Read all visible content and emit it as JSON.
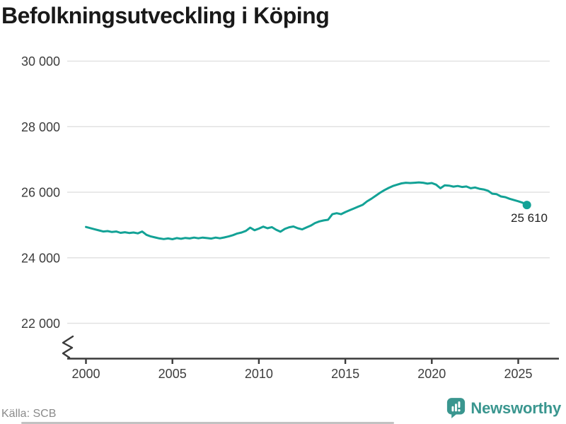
{
  "header": {
    "title": "Befolkningsutveckling i Köping"
  },
  "footer": {
    "source": "Källa: SCB",
    "brand": "Newsworthy"
  },
  "colors": {
    "line": "#13a296",
    "brand": "#3a968f",
    "grid": "#e2e2e2",
    "axis": "#3a3a3a",
    "tick_text": "#3d3d3d",
    "title_text": "#191919",
    "end_label_text": "#222222",
    "source_text": "#8a8a8a"
  },
  "icons": {
    "logo_icon": "newsworthy-speech-bubble-bar-chart",
    "axis_break": "y-axis-break-zigzag"
  },
  "chart_data": {
    "type": "line",
    "title": "Befolkningsutveckling i Köping",
    "series_name": "Befolkning i Köping",
    "xlabel": "",
    "ylabel": "",
    "x_start": 2000.0,
    "x_step": 0.25,
    "x_end": 2025.5,
    "values": [
      24940,
      24905,
      24870,
      24835,
      24800,
      24815,
      24785,
      24800,
      24760,
      24780,
      24755,
      24770,
      24745,
      24800,
      24700,
      24650,
      24620,
      24590,
      24570,
      24590,
      24565,
      24600,
      24580,
      24605,
      24590,
      24615,
      24595,
      24615,
      24600,
      24585,
      24615,
      24595,
      24620,
      24650,
      24690,
      24740,
      24770,
      24820,
      24920,
      24840,
      24890,
      24950,
      24900,
      24935,
      24855,
      24795,
      24880,
      24930,
      24955,
      24900,
      24865,
      24925,
      24980,
      25060,
      25110,
      25140,
      25160,
      25330,
      25360,
      25330,
      25395,
      25450,
      25505,
      25560,
      25615,
      25720,
      25800,
      25890,
      25980,
      26060,
      26130,
      26190,
      26230,
      26270,
      26290,
      26280,
      26290,
      26300,
      26290,
      26260,
      26280,
      26230,
      26120,
      26210,
      26200,
      26170,
      26190,
      26160,
      26175,
      26120,
      26145,
      26105,
      26085,
      26045,
      25955,
      25940,
      25870,
      25850,
      25800,
      25760,
      25725,
      25680,
      25610
    ],
    "end_value": 25610,
    "end_label": "25 610",
    "yticks": [
      {
        "value": 30000,
        "label": "30 000"
      },
      {
        "value": 28000,
        "label": "28 000"
      },
      {
        "value": 26000,
        "label": "26 000"
      },
      {
        "value": 24000,
        "label": "24 000"
      },
      {
        "value": 22000,
        "label": "22 000"
      }
    ],
    "xticks": [
      {
        "value": 2000,
        "label": "2000"
      },
      {
        "value": 2005,
        "label": "2005"
      },
      {
        "value": 2010,
        "label": "2010"
      },
      {
        "value": 2015,
        "label": "2015"
      },
      {
        "value": 2020,
        "label": "2020"
      },
      {
        "value": 2025,
        "label": "2025"
      }
    ],
    "ylim_shown": [
      22000,
      30000
    ],
    "axis_break": true,
    "grid": "horizontal",
    "legend": "none",
    "line_color": "#13a296"
  }
}
